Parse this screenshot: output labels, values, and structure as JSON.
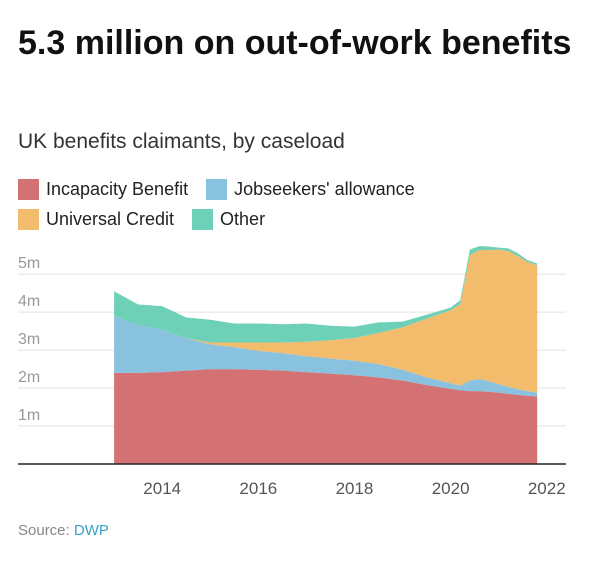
{
  "title": "5.3 million on out-of-work benefits",
  "subtitle": "UK benefits claimants, by caseload",
  "source": {
    "prefix": "Source: ",
    "link": "DWP"
  },
  "colors": {
    "incapacity": "#d47273",
    "jobseekers": "#88c2de",
    "universal_credit": "#f3bb6c",
    "other": "#6fd0b8",
    "grid": "#e2e2e2",
    "axis": "#222222",
    "tick": "#999999"
  },
  "chart_data": {
    "type": "area",
    "stacked": true,
    "x": [
      2013,
      2013.5,
      2014,
      2014.5,
      2015,
      2015.5,
      2016,
      2016.5,
      2017,
      2017.5,
      2018,
      2018.5,
      2019,
      2019.5,
      2020,
      2020.2,
      2020.4,
      2020.6,
      2020.8,
      2021,
      2021.2,
      2021.4,
      2021.6,
      2021.8
    ],
    "series": [
      {
        "name": "Incapacity Benefit",
        "color": "#d47273",
        "values": [
          2.4,
          2.4,
          2.42,
          2.46,
          2.5,
          2.5,
          2.48,
          2.46,
          2.42,
          2.38,
          2.34,
          2.28,
          2.2,
          2.08,
          1.98,
          1.94,
          1.92,
          1.92,
          1.9,
          1.88,
          1.85,
          1.82,
          1.8,
          1.78
        ]
      },
      {
        "name": "Jobseekers' allowance",
        "color": "#88c2de",
        "values": [
          1.5,
          1.25,
          1.12,
          0.85,
          0.65,
          0.58,
          0.5,
          0.46,
          0.42,
          0.4,
          0.38,
          0.35,
          0.28,
          0.2,
          0.15,
          0.12,
          0.28,
          0.32,
          0.28,
          0.22,
          0.18,
          0.15,
          0.12,
          0.1
        ]
      },
      {
        "name": "Universal Credit",
        "color": "#f3bb6c",
        "values": [
          0,
          0,
          0,
          0,
          0.05,
          0.12,
          0.22,
          0.28,
          0.38,
          0.48,
          0.6,
          0.82,
          1.12,
          1.55,
          1.92,
          2.15,
          3.3,
          3.4,
          3.45,
          3.55,
          3.58,
          3.5,
          3.4,
          3.35
        ]
      },
      {
        "name": "Other",
        "color": "#6fd0b8",
        "values": [
          0.65,
          0.55,
          0.62,
          0.55,
          0.6,
          0.5,
          0.5,
          0.48,
          0.48,
          0.38,
          0.3,
          0.28,
          0.15,
          0.1,
          0.07,
          0.1,
          0.15,
          0.1,
          0.1,
          0.05,
          0.07,
          0.08,
          0.05,
          0.05
        ]
      }
    ],
    "xlim": [
      2011,
      2022.4
    ],
    "ylim": [
      0,
      5.9
    ],
    "xticks": [
      2014,
      2016,
      2018,
      2020,
      2022
    ],
    "xtick_labels": [
      "2014",
      "2016",
      "2018",
      "2020",
      "2022"
    ],
    "yticks": [
      1,
      2,
      3,
      4,
      5
    ],
    "ytick_labels": [
      "1m",
      "2m",
      "3m",
      "4m",
      "5m"
    ],
    "grid": true,
    "legend_position": "top-left"
  }
}
